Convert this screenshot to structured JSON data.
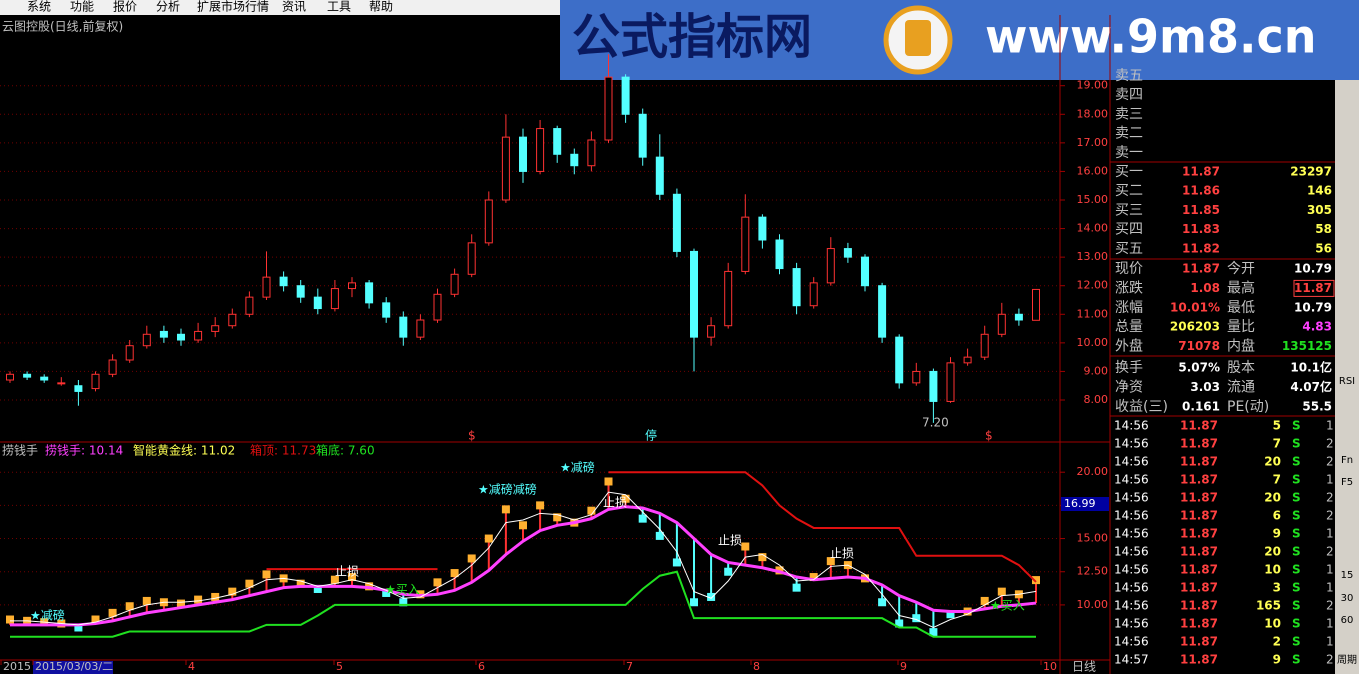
{
  "menu": [
    "系统",
    "功能",
    "报价",
    "分析",
    "扩展市场行情",
    "资讯",
    "工具",
    "帮助"
  ],
  "watermark": {
    "name": "公式指标网",
    "url": "www.9m8.cn"
  },
  "chart_data": [
    {
      "type": "candlestick",
      "title": "云图控股(日线,前复权)",
      "up_color": "#ff3232",
      "down_color": "#54ffff",
      "grid": true,
      "ylim": [
        6.6,
        21.3
      ],
      "yticks": [
        {
          "value": 8,
          "label": "8.00"
        },
        {
          "value": 9,
          "label": "9.00"
        },
        {
          "value": 10,
          "label": "10.00"
        },
        {
          "value": 11,
          "label": "11.00"
        },
        {
          "value": 12,
          "label": "12.00"
        },
        {
          "value": 13,
          "label": "13.00"
        },
        {
          "value": 14,
          "label": "14.00"
        },
        {
          "value": 15,
          "label": "15.00"
        },
        {
          "value": 16,
          "label": "16.00"
        },
        {
          "value": 17,
          "label": "17.00"
        },
        {
          "value": 18,
          "label": "18.00"
        },
        {
          "value": 19,
          "label": "19.00"
        }
      ],
      "ohlc": [
        [
          8.7,
          9.0,
          8.6,
          8.9
        ],
        [
          8.9,
          9.0,
          8.7,
          8.8
        ],
        [
          8.8,
          8.9,
          8.6,
          8.7
        ],
        [
          8.6,
          8.8,
          8.5,
          8.6
        ],
        [
          8.5,
          8.7,
          7.8,
          8.3
        ],
        [
          8.4,
          9.0,
          8.3,
          8.9
        ],
        [
          8.9,
          9.6,
          8.8,
          9.4
        ],
        [
          9.4,
          10.1,
          9.3,
          9.9
        ],
        [
          9.9,
          10.6,
          9.8,
          10.3
        ],
        [
          10.4,
          10.6,
          10.0,
          10.2
        ],
        [
          10.3,
          10.5,
          9.9,
          10.1
        ],
        [
          10.1,
          10.7,
          10.0,
          10.4
        ],
        [
          10.4,
          10.9,
          10.2,
          10.6
        ],
        [
          10.6,
          11.2,
          10.5,
          11.0
        ],
        [
          11.0,
          11.8,
          10.9,
          11.6
        ],
        [
          11.6,
          13.2,
          11.5,
          12.3
        ],
        [
          12.3,
          12.5,
          11.8,
          12.0
        ],
        [
          12.0,
          12.2,
          11.4,
          11.6
        ],
        [
          11.6,
          11.9,
          11.0,
          11.2
        ],
        [
          11.2,
          12.2,
          11.1,
          11.9
        ],
        [
          11.9,
          12.3,
          11.6,
          12.1
        ],
        [
          12.1,
          12.2,
          11.2,
          11.4
        ],
        [
          11.4,
          11.6,
          10.7,
          10.9
        ],
        [
          10.9,
          11.1,
          9.9,
          10.2
        ],
        [
          10.2,
          11.0,
          10.1,
          10.8
        ],
        [
          10.8,
          11.9,
          10.7,
          11.7
        ],
        [
          11.7,
          12.6,
          11.6,
          12.4
        ],
        [
          12.4,
          13.8,
          12.3,
          13.5
        ],
        [
          13.5,
          15.3,
          13.4,
          15.0
        ],
        [
          15.0,
          18.0,
          14.9,
          17.2
        ],
        [
          17.2,
          17.5,
          15.6,
          16.0
        ],
        [
          16.0,
          17.8,
          15.9,
          17.5
        ],
        [
          17.5,
          17.6,
          16.3,
          16.6
        ],
        [
          16.6,
          16.8,
          15.9,
          16.2
        ],
        [
          16.2,
          17.4,
          16.0,
          17.1
        ],
        [
          17.1,
          20.1,
          17.0,
          19.3
        ],
        [
          19.3,
          19.4,
          17.7,
          18.0
        ],
        [
          18.0,
          18.2,
          16.2,
          16.5
        ],
        [
          16.5,
          17.3,
          15.0,
          15.2
        ],
        [
          15.2,
          15.4,
          13.0,
          13.2
        ],
        [
          13.2,
          13.3,
          9.0,
          10.2
        ],
        [
          10.2,
          10.9,
          9.9,
          10.6
        ],
        [
          10.6,
          12.8,
          10.5,
          12.5
        ],
        [
          12.5,
          15.2,
          12.4,
          14.4
        ],
        [
          14.4,
          14.5,
          13.3,
          13.6
        ],
        [
          13.6,
          13.8,
          12.4,
          12.6
        ],
        [
          12.6,
          12.8,
          11.0,
          11.3
        ],
        [
          11.3,
          12.3,
          11.2,
          12.1
        ],
        [
          12.1,
          13.7,
          12.0,
          13.3
        ],
        [
          13.3,
          13.5,
          12.8,
          13.0
        ],
        [
          13.0,
          13.1,
          11.8,
          12.0
        ],
        [
          12.0,
          12.1,
          10.0,
          10.2
        ],
        [
          10.2,
          10.3,
          8.4,
          8.6
        ],
        [
          8.6,
          9.3,
          8.5,
          9.0
        ],
        [
          9.0,
          9.1,
          7.2,
          7.95
        ],
        [
          7.95,
          9.5,
          7.9,
          9.3
        ],
        [
          9.3,
          9.8,
          9.2,
          9.5
        ],
        [
          9.5,
          10.6,
          9.4,
          10.3
        ],
        [
          10.3,
          11.4,
          10.2,
          11.0
        ],
        [
          11.0,
          11.2,
          10.6,
          10.8
        ],
        [
          10.79,
          11.87,
          10.79,
          11.87
        ]
      ],
      "annotations": [
        "$",
        "停",
        "$",
        "7.20"
      ]
    },
    {
      "type": "line",
      "title": "捞钱手",
      "grid": true,
      "ylim": [
        6.0,
        22.2
      ],
      "yticks": [
        {
          "value": 10,
          "label": "10.00"
        },
        {
          "value": 12.5,
          "label": "12.50"
        },
        {
          "value": 15,
          "label": "15.00"
        },
        {
          "value": 17.5,
          "label": "17.50"
        },
        {
          "value": 20,
          "label": "20.00"
        }
      ],
      "series": [
        {
          "name": "捞钱手",
          "legend": "捞钱手: 10.14",
          "color": "#ff40ff",
          "width": 3,
          "values": [
            8.5,
            8.5,
            8.5,
            8.5,
            8.5,
            8.6,
            8.8,
            9.1,
            9.4,
            9.6,
            9.8,
            10.0,
            10.2,
            10.4,
            10.7,
            11.0,
            11.3,
            11.4,
            11.4,
            11.4,
            11.4,
            11.3,
            11.1,
            10.8,
            10.7,
            10.8,
            11.1,
            11.7,
            12.6,
            13.8,
            14.8,
            15.6,
            16.0,
            16.2,
            16.5,
            17.2,
            17.4,
            17.3,
            16.9,
            16.2,
            15.0,
            13.8,
            13.2,
            13.0,
            12.8,
            12.5,
            12.1,
            11.9,
            12.0,
            12.1,
            12.0,
            11.5,
            10.7,
            10.2,
            9.6,
            9.5,
            9.5,
            9.7,
            9.9,
            10.0,
            10.14
          ]
        },
        {
          "name": "智能黄金线",
          "legend": "智能黄金线: 11.02",
          "color": "#ffffff",
          "width": 1,
          "values": [
            8.8,
            8.8,
            8.7,
            8.6,
            8.5,
            8.7,
            9.1,
            9.6,
            10.0,
            10.2,
            10.2,
            10.3,
            10.5,
            10.8,
            11.3,
            11.9,
            12.0,
            11.8,
            11.4,
            11.6,
            11.9,
            11.6,
            11.1,
            10.5,
            10.6,
            11.3,
            12.0,
            13.0,
            14.3,
            16.2,
            16.4,
            16.9,
            16.8,
            16.4,
            16.8,
            18.5,
            18.3,
            17.0,
            15.7,
            14.0,
            11.0,
            10.5,
            11.8,
            13.6,
            13.8,
            13.0,
            11.8,
            11.9,
            12.9,
            13.0,
            12.3,
            10.8,
            9.2,
            8.9,
            8.3,
            8.9,
            9.3,
            10.0,
            10.7,
            10.8,
            11.02
          ]
        },
        {
          "name": "箱顶",
          "legend": "箱顶: 11.73",
          "color": "#e01010",
          "width": 2,
          "values": [
            null,
            null,
            null,
            null,
            null,
            null,
            null,
            null,
            null,
            null,
            null,
            null,
            null,
            null,
            null,
            12.7,
            12.7,
            12.7,
            12.7,
            12.7,
            12.7,
            12.7,
            12.7,
            12.7,
            12.7,
            12.7,
            null,
            null,
            null,
            null,
            null,
            null,
            null,
            null,
            null,
            20.0,
            20.0,
            20.0,
            20.0,
            20.0,
            20.0,
            20.0,
            20.0,
            20.0,
            19.0,
            17.5,
            16.5,
            15.8,
            15.8,
            15.8,
            15.8,
            15.8,
            15.8,
            13.7,
            13.7,
            13.7,
            13.7,
            13.7,
            13.7,
            13.0,
            11.73
          ]
        },
        {
          "name": "箱底",
          "legend": "箱底: 7.60",
          "color": "#20e020",
          "width": 2,
          "values": [
            7.6,
            7.6,
            7.6,
            7.6,
            7.6,
            7.6,
            7.6,
            8.0,
            8.0,
            8.0,
            8.0,
            8.0,
            8.0,
            8.0,
            8.0,
            8.5,
            8.5,
            8.5,
            9.2,
            10.0,
            10.0,
            10.0,
            10.0,
            10.0,
            10.0,
            10.0,
            10.0,
            10.0,
            10.0,
            10.0,
            10.0,
            10.0,
            10.0,
            10.0,
            10.0,
            10.0,
            10.0,
            11.2,
            12.2,
            12.5,
            9.0,
            9.0,
            9.0,
            9.0,
            9.0,
            9.0,
            9.0,
            9.0,
            9.0,
            9.0,
            9.0,
            9.0,
            8.3,
            8.3,
            7.6,
            7.6,
            7.6,
            7.6,
            7.6,
            7.6,
            7.6
          ]
        }
      ],
      "annotations": [
        "★减磅",
        "止损",
        "★减磅减磅",
        "★减磅",
        "止损",
        "止损",
        "止损",
        "★买入",
        "★买入"
      ],
      "cursor_label": "16.99"
    }
  ],
  "x_labels": [
    "2015",
    "2015/03/03/二",
    "4",
    "5",
    "6",
    "7",
    "8",
    "9",
    "10"
  ],
  "period": "日线",
  "order_book": [
    [
      "卖五",
      "",
      ""
    ],
    [
      "卖四",
      "",
      ""
    ],
    [
      "卖三",
      "",
      ""
    ],
    [
      "卖二",
      "",
      ""
    ],
    [
      "卖一",
      "",
      ""
    ],
    [
      "买一",
      "11.87",
      "23297"
    ],
    [
      "买二",
      "11.86",
      "146"
    ],
    [
      "买三",
      "11.85",
      "305"
    ],
    [
      "买四",
      "11.83",
      "58"
    ],
    [
      "买五",
      "11.82",
      "56"
    ]
  ],
  "stats": [
    [
      "现价",
      "11.87",
      "今开",
      "10.79"
    ],
    [
      "涨跌",
      "1.08",
      "最高",
      "11.87"
    ],
    [
      "涨幅",
      "10.01%",
      "最低",
      "10.79"
    ],
    [
      "总量",
      "206203",
      "量比",
      "4.83"
    ],
    [
      "外盘",
      "71078",
      "内盘",
      "135125"
    ],
    [
      "换手",
      "5.07%",
      "股本",
      "10.1亿"
    ],
    [
      "净资",
      "3.03",
      "流通",
      "4.07亿"
    ],
    [
      "收益(三)",
      "0.161",
      "PE(动)",
      "55.5"
    ]
  ],
  "ticks": [
    [
      "14:56",
      "11.87",
      "5",
      "S",
      "1"
    ],
    [
      "14:56",
      "11.87",
      "7",
      "S",
      "2"
    ],
    [
      "14:56",
      "11.87",
      "20",
      "S",
      "2"
    ],
    [
      "14:56",
      "11.87",
      "7",
      "S",
      "1"
    ],
    [
      "14:56",
      "11.87",
      "20",
      "S",
      "2"
    ],
    [
      "14:56",
      "11.87",
      "6",
      "S",
      "2"
    ],
    [
      "14:56",
      "11.87",
      "9",
      "S",
      "1"
    ],
    [
      "14:56",
      "11.87",
      "20",
      "S",
      "2"
    ],
    [
      "14:56",
      "11.87",
      "10",
      "S",
      "1"
    ],
    [
      "14:56",
      "11.87",
      "3",
      "S",
      "1"
    ],
    [
      "14:56",
      "11.87",
      "165",
      "S",
      "2"
    ],
    [
      "14:56",
      "11.87",
      "10",
      "S",
      "1"
    ],
    [
      "14:56",
      "11.87",
      "2",
      "S",
      "1"
    ],
    [
      "14:57",
      "11.87",
      "9",
      "S",
      "2"
    ]
  ],
  "toolbar": [
    "RSI",
    "Fn",
    "F5",
    "15",
    "30",
    "60",
    "周期"
  ]
}
